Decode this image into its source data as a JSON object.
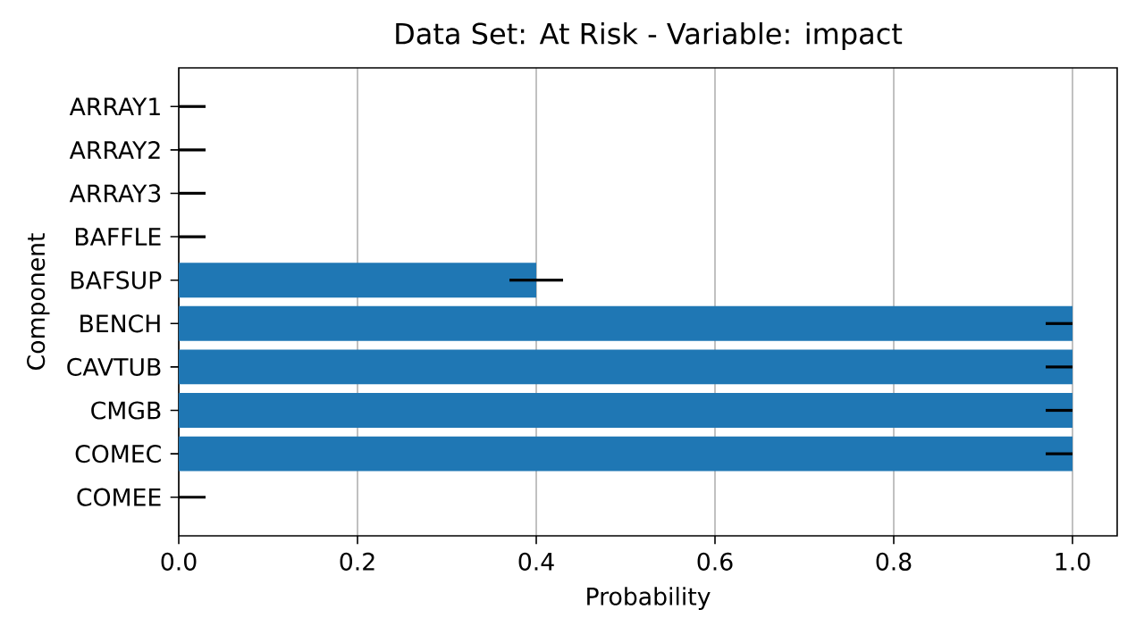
{
  "chart_data": {
    "type": "bar",
    "orientation": "horizontal",
    "title": "Data Set: At Risk - Variable: impact",
    "xlabel": "Probability",
    "ylabel": "Component",
    "categories": [
      "ARRAY1",
      "ARRAY2",
      "ARRAY3",
      "BAFFLE",
      "BAFSUP",
      "BENCH",
      "CAVTUB",
      "CMGB",
      "COMEC",
      "COMEE"
    ],
    "values": [
      0,
      0,
      0,
      0,
      0.4,
      1.0,
      1.0,
      1.0,
      1.0,
      0
    ],
    "errors": [
      [
        0,
        0.03
      ],
      [
        0,
        0.03
      ],
      [
        0,
        0.03
      ],
      [
        0,
        0.03
      ],
      [
        0.37,
        0.43
      ],
      [
        0.97,
        1.0
      ],
      [
        0.97,
        1.0
      ],
      [
        0.97,
        1.0
      ],
      [
        0.97,
        1.0
      ],
      [
        0,
        0.03
      ]
    ],
    "color": "#1f77b4",
    "xlim": [
      0,
      1.05
    ],
    "xticks": [
      {
        "value": 0,
        "label": "0.0"
      },
      0.2,
      0.4,
      0.6,
      0.8,
      {
        "value": 1,
        "label": "1.0"
      }
    ],
    "grid": "x"
  }
}
